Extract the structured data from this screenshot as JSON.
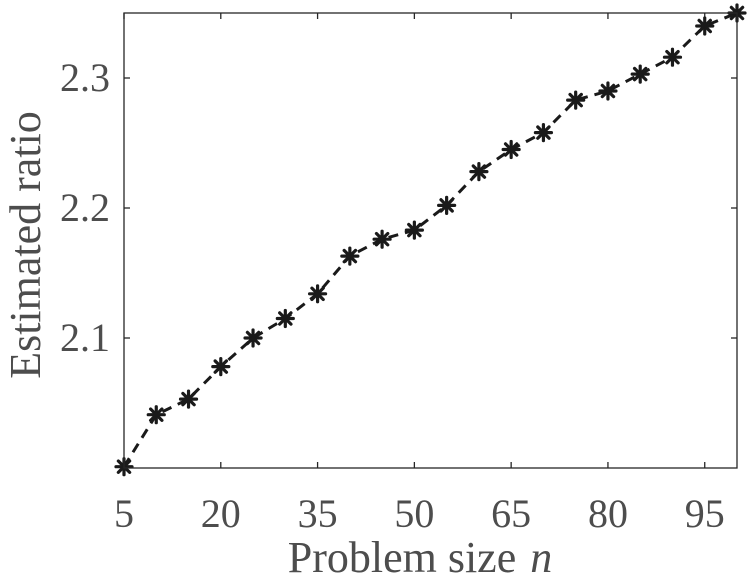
{
  "chart_data": {
    "type": "line",
    "title": "",
    "xlabel": "Problem size",
    "xlabel_var": "n",
    "ylabel": "Estimated ratio",
    "xlim": [
      5,
      100
    ],
    "ylim": [
      2.0,
      2.35
    ],
    "xticks": [
      5,
      20,
      35,
      50,
      65,
      80,
      95
    ],
    "xtick_labels": [
      "5",
      "20",
      "35",
      "50",
      "65",
      "80",
      "95"
    ],
    "yticks": [
      2.1,
      2.2,
      2.3
    ],
    "ytick_labels": [
      "2.1",
      "2.2",
      "2.3"
    ],
    "grid": false,
    "series": [
      {
        "line_style": "dashed",
        "marker": "asterisk",
        "color": "#1a1a1a",
        "x": [
          5,
          10,
          15,
          20,
          25,
          30,
          35,
          40,
          45,
          50,
          55,
          60,
          65,
          70,
          75,
          80,
          85,
          90,
          95,
          100
        ],
        "y": [
          2.001,
          2.041,
          2.053,
          2.078,
          2.1,
          2.115,
          2.134,
          2.163,
          2.176,
          2.183,
          2.202,
          2.228,
          2.245,
          2.258,
          2.283,
          2.29,
          2.303,
          2.316,
          2.34,
          2.35
        ]
      }
    ]
  }
}
